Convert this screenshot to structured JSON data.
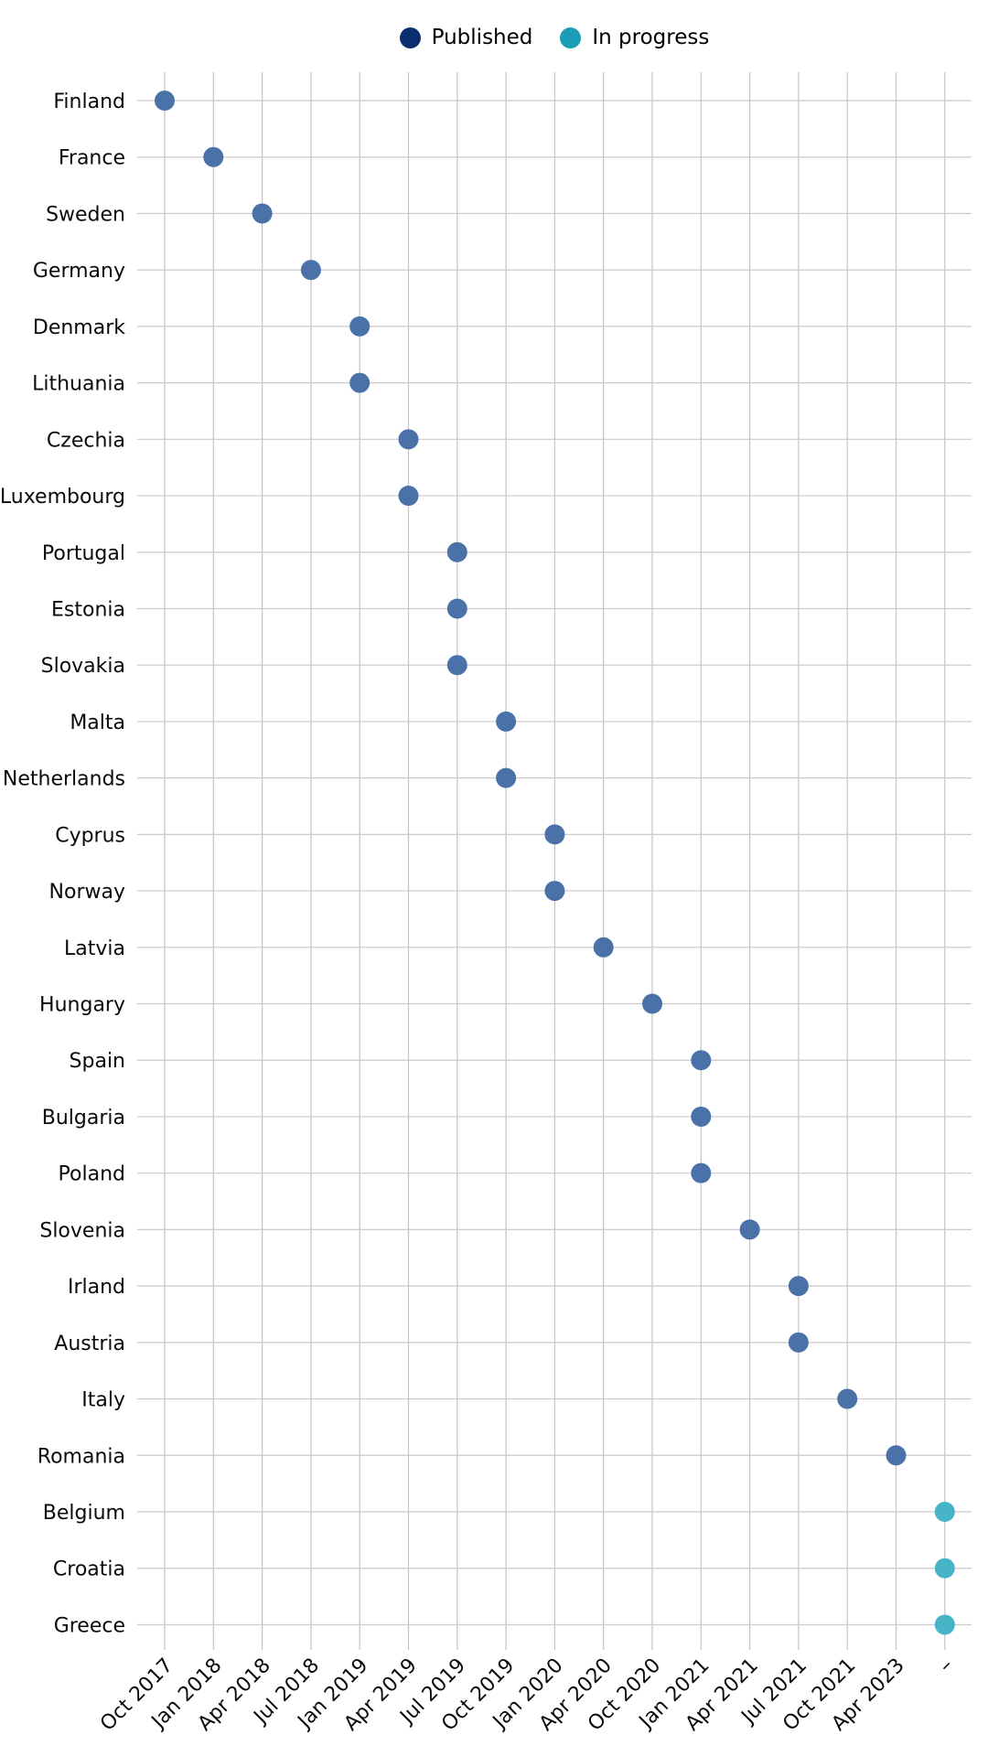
{
  "legend": {
    "published_label": "Published",
    "in_progress_label": "In progress"
  },
  "chart_data": {
    "type": "scatter",
    "title": "",
    "xlabel": "",
    "ylabel": "",
    "grid": true,
    "legend_position": "top-center",
    "x_categories": [
      "Oct 2017",
      "Jan 2018",
      "Apr 2018",
      "Jul 2018",
      "Jan 2019",
      "Apr 2019",
      "Jul 2019",
      "Oct 2019",
      "Jan 2020",
      "Apr 2020",
      "Oct 2020",
      "Jan 2021",
      "Apr 2021",
      "Jul 2021",
      "Oct 2021",
      "Apr 2023",
      "–"
    ],
    "y_categories": [
      "Finland",
      "France",
      "Sweden",
      "Germany",
      "Denmark",
      "Lithuania",
      "Czechia",
      "Luxembourg",
      "Portugal",
      "Estonia",
      "Slovakia",
      "Malta",
      "Netherlands",
      "Cyprus",
      "Norway",
      "Latvia",
      "Hungary",
      "Spain",
      "Bulgaria",
      "Poland",
      "Slovenia",
      "Irland",
      "Austria",
      "Italy",
      "Romania",
      "Belgium",
      "Croatia",
      "Greece"
    ],
    "series": [
      {
        "name": "Published",
        "legend_color": "#0a2e6e",
        "marker_color": "#4a72a9",
        "points": [
          {
            "y": "Finland",
            "x": "Oct 2017"
          },
          {
            "y": "France",
            "x": "Jan 2018"
          },
          {
            "y": "Sweden",
            "x": "Apr 2018"
          },
          {
            "y": "Germany",
            "x": "Jul 2018"
          },
          {
            "y": "Denmark",
            "x": "Jan 2019"
          },
          {
            "y": "Lithuania",
            "x": "Jan 2019"
          },
          {
            "y": "Czechia",
            "x": "Apr 2019"
          },
          {
            "y": "Luxembourg",
            "x": "Apr 2019"
          },
          {
            "y": "Portugal",
            "x": "Jul 2019"
          },
          {
            "y": "Estonia",
            "x": "Jul 2019"
          },
          {
            "y": "Slovakia",
            "x": "Jul 2019"
          },
          {
            "y": "Malta",
            "x": "Oct 2019"
          },
          {
            "y": "Netherlands",
            "x": "Oct 2019"
          },
          {
            "y": "Cyprus",
            "x": "Jan 2020"
          },
          {
            "y": "Norway",
            "x": "Jan 2020"
          },
          {
            "y": "Latvia",
            "x": "Apr 2020"
          },
          {
            "y": "Hungary",
            "x": "Oct 2020"
          },
          {
            "y": "Spain",
            "x": "Jan 2021"
          },
          {
            "y": "Bulgaria",
            "x": "Jan 2021"
          },
          {
            "y": "Poland",
            "x": "Jan 2021"
          },
          {
            "y": "Slovenia",
            "x": "Apr 2021"
          },
          {
            "y": "Irland",
            "x": "Jul 2021"
          },
          {
            "y": "Austria",
            "x": "Jul 2021"
          },
          {
            "y": "Italy",
            "x": "Oct 2021"
          },
          {
            "y": "Romania",
            "x": "Apr 2023"
          }
        ]
      },
      {
        "name": "In progress",
        "legend_color": "#1b9db5",
        "marker_color": "#47b4c8",
        "points": [
          {
            "y": "Belgium",
            "x": "–"
          },
          {
            "y": "Croatia",
            "x": "–"
          },
          {
            "y": "Greece",
            "x": "–"
          }
        ]
      }
    ],
    "colors": {
      "grid_vertical": "#c3c3c3",
      "grid_horizontal": "#c9c9c9",
      "text": "#0a0a0a",
      "background": "#ffffff"
    }
  }
}
